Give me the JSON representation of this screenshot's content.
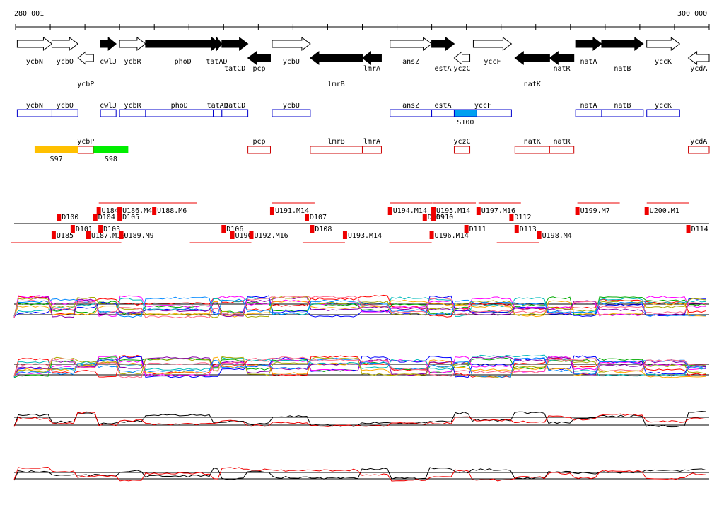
{
  "header": {
    "start_label": "280 001",
    "end_label": "300 000"
  },
  "scale": {
    "start": 280001,
    "end": 300000
  },
  "colors": {
    "gene_fill_dark": "#000000",
    "gene_outline_light": "#000000",
    "box_blue": "#0000cc",
    "box_red": "#cc0000",
    "segment_blue_fill": "#00a0f0",
    "segment_orange_fill": "#ffc000",
    "segment_green_fill": "#00ee00",
    "marker_red": "#ee0000"
  },
  "genes_row": [
    {
      "name": "ycbN",
      "start": 280050,
      "end": 281050,
      "strand": "+",
      "style": "light",
      "label_pos": "below"
    },
    {
      "name": "ycbO",
      "start": 281050,
      "end": 281800,
      "strand": "+",
      "style": "light",
      "label_pos": "below"
    },
    {
      "name": "ycbP",
      "start": 281800,
      "end": 282250,
      "strand": "-",
      "style": "light",
      "label_pos": "below2"
    },
    {
      "name": "cwlJ",
      "start": 282450,
      "end": 282900,
      "strand": "+",
      "style": "dark",
      "label_pos": "below"
    },
    {
      "name": "ycbR",
      "start": 283000,
      "end": 283750,
      "strand": "+",
      "style": "light",
      "label_pos": "below"
    },
    {
      "name": "phoD",
      "start": 283750,
      "end": 285900,
      "strand": "+",
      "style": "dark",
      "label_pos": "below"
    },
    {
      "name": "tatAD",
      "start": 285650,
      "end": 285950,
      "strand": "+",
      "style": "dark",
      "label_pos": "below"
    },
    {
      "name": "tatCD",
      "start": 285950,
      "end": 286700,
      "strand": "+",
      "style": "dark",
      "label_pos": "below2"
    },
    {
      "name": "pcp",
      "start": 286700,
      "end": 287350,
      "strand": "-",
      "style": "dark",
      "label_pos": "below2"
    },
    {
      "name": "ycbU",
      "start": 287400,
      "end": 288500,
      "strand": "+",
      "style": "light",
      "label_pos": "below"
    },
    {
      "name": "lmrB",
      "start": 288500,
      "end": 290000,
      "strand": "-",
      "style": "dark",
      "label_pos": "below3"
    },
    {
      "name": "lmrA",
      "start": 290000,
      "end": 290550,
      "strand": "-",
      "style": "dark",
      "label_pos": "below2"
    },
    {
      "name": "ansZ",
      "start": 290800,
      "end": 292000,
      "strand": "+",
      "style": "light",
      "label_pos": "below"
    },
    {
      "name": "estA",
      "start": 292000,
      "end": 292650,
      "strand": "+",
      "style": "dark",
      "label_pos": "below2"
    },
    {
      "name": "yczC",
      "start": 292650,
      "end": 293100,
      "strand": "-",
      "style": "light",
      "label_pos": "below2"
    },
    {
      "name": "yccF",
      "start": 293200,
      "end": 294300,
      "strand": "+",
      "style": "light",
      "label_pos": "below"
    },
    {
      "name": "natK",
      "start": 294400,
      "end": 295400,
      "strand": "-",
      "style": "dark",
      "label_pos": "below3"
    },
    {
      "name": "natR",
      "start": 295400,
      "end": 296100,
      "strand": "-",
      "style": "dark",
      "label_pos": "below2"
    },
    {
      "name": "natA",
      "start": 296150,
      "end": 296900,
      "strand": "+",
      "style": "dark",
      "label_pos": "below"
    },
    {
      "name": "natB",
      "start": 296900,
      "end": 298100,
      "strand": "+",
      "style": "dark",
      "label_pos": "below2"
    },
    {
      "name": "yccK",
      "start": 298200,
      "end": 299150,
      "strand": "+",
      "style": "light",
      "label_pos": "below"
    },
    {
      "name": "ycdA",
      "start": 299400,
      "end": 300000,
      "strand": "-",
      "style": "light",
      "label_pos": "below2"
    }
  ],
  "plus_boxes": [
    {
      "name": "ycbN",
      "start": 280050,
      "end": 281050
    },
    {
      "name": "ycbO",
      "start": 281050,
      "end": 281800
    },
    {
      "name": "cwlJ",
      "start": 282450,
      "end": 282900
    },
    {
      "name": "ycbR",
      "start": 283000,
      "end": 283750
    },
    {
      "name": "phoD",
      "start": 283750,
      "end": 285700
    },
    {
      "name": "tatAD",
      "start": 285700,
      "end": 285950
    },
    {
      "name": "tatCD",
      "start": 285950,
      "end": 286700
    },
    {
      "name": "ycbU",
      "start": 287400,
      "end": 288500
    },
    {
      "name": "ansZ",
      "start": 290800,
      "end": 292000
    },
    {
      "name": "estA",
      "start": 292000,
      "end": 292650
    },
    {
      "name": "yccF",
      "start": 292650,
      "end": 294300
    },
    {
      "name": "natA",
      "start": 296150,
      "end": 296900
    },
    {
      "name": "natB",
      "start": 296900,
      "end": 298100
    },
    {
      "name": "yccK",
      "start": 298200,
      "end": 299150
    }
  ],
  "plus_segment": {
    "name": "S100",
    "start": 292650,
    "end": 293300
  },
  "minus_boxes": [
    {
      "name": "ycbP",
      "start": 281800,
      "end": 282250
    },
    {
      "name": "pcp",
      "start": 286700,
      "end": 287350
    },
    {
      "name": "lmrB",
      "start": 288500,
      "end": 290000
    },
    {
      "name": "lmrA",
      "start": 290000,
      "end": 290550
    },
    {
      "name": "yczC",
      "start": 292650,
      "end": 293100
    },
    {
      "name": "natK",
      "start": 294400,
      "end": 295400
    },
    {
      "name": "natR",
      "start": 295400,
      "end": 296100
    },
    {
      "name": "ycdA",
      "start": 299400,
      "end": 300000
    }
  ],
  "minus_segments": [
    {
      "name": "S97",
      "start": 280550,
      "end": 281800,
      "color": "#ffc000"
    },
    {
      "name": "S98",
      "start": 282250,
      "end": 283250,
      "color": "#00ee00"
    }
  ],
  "regulatory_labels": {
    "above": [
      {
        "text": "D100",
        "pos": 281250
      },
      {
        "text": "U184",
        "pos": 282400
      },
      {
        "text": "D104",
        "pos": 282300
      },
      {
        "text": "U186.M4",
        "pos": 283000
      },
      {
        "text": "D105",
        "pos": 283000
      },
      {
        "text": "U188.M6",
        "pos": 284000
      },
      {
        "text": "U191.M14",
        "pos": 287400
      },
      {
        "text": "D107",
        "pos": 288400
      },
      {
        "text": "U194.M14",
        "pos": 290800
      },
      {
        "text": "D109",
        "pos": 291800
      },
      {
        "text": "U195.M14",
        "pos": 292050
      },
      {
        "text": "D110",
        "pos": 292050
      },
      {
        "text": "U197.M16",
        "pos": 293350
      },
      {
        "text": "D112",
        "pos": 294300
      },
      {
        "text": "U199.M7",
        "pos": 296200
      },
      {
        "text": "U200.M1",
        "pos": 298200
      }
    ],
    "below": [
      {
        "text": "U185",
        "pos": 281100
      },
      {
        "text": "D101",
        "pos": 281650
      },
      {
        "text": "U187.M19",
        "pos": 282100
      },
      {
        "text": "D103",
        "pos": 282450
      },
      {
        "text": "U189.M9",
        "pos": 283050
      },
      {
        "text": "D106",
        "pos": 286000
      },
      {
        "text": "U190",
        "pos": 286250
      },
      {
        "text": "U192.M16",
        "pos": 286800
      },
      {
        "text": "D108",
        "pos": 288550
      },
      {
        "text": "U193.M14",
        "pos": 289500
      },
      {
        "text": "U196.M14",
        "pos": 292000
      },
      {
        "text": "D111",
        "pos": 293000
      },
      {
        "text": "D113",
        "pos": 294450
      },
      {
        "text": "U198.M4",
        "pos": 295100
      },
      {
        "text": "D114",
        "pos": 299400
      }
    ]
  },
  "expression_tracks": [
    {
      "name": "track-1",
      "type": "multi"
    },
    {
      "name": "track-2",
      "type": "multi"
    },
    {
      "name": "track-3",
      "type": "pair"
    },
    {
      "name": "track-4",
      "type": "pair"
    }
  ]
}
